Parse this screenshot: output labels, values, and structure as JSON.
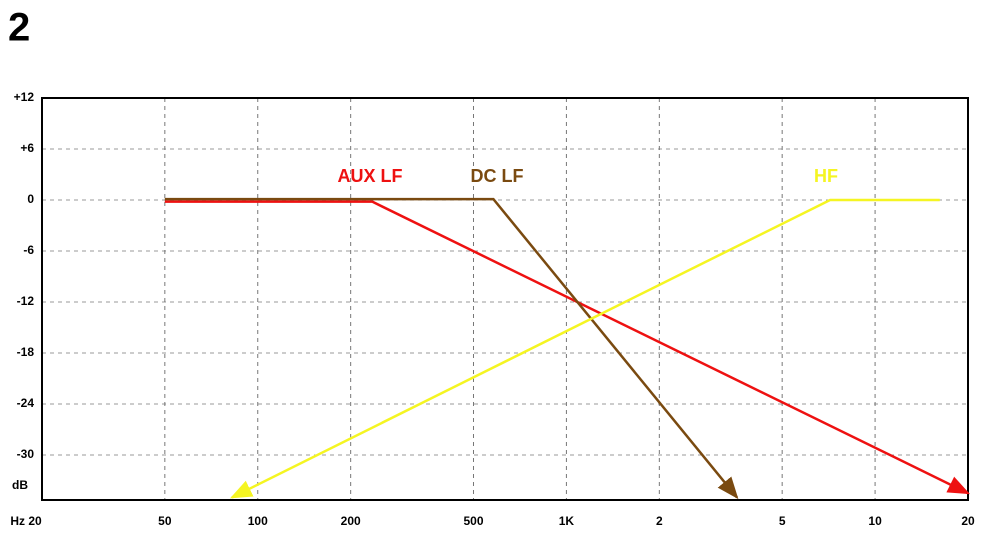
{
  "chart_data": {
    "type": "line",
    "title": "2",
    "y_label": "dB",
    "xscale": "log",
    "grid": true,
    "xlim": [
      20,
      20000
    ],
    "ylim": [
      -35.3,
      12
    ],
    "xticks": [
      {
        "value": 20,
        "label": "Hz 20"
      },
      50,
      100,
      200,
      500,
      {
        "value": 1000,
        "label": "1K"
      },
      {
        "value": 2000,
        "label": "2"
      },
      {
        "value": 5000,
        "label": "5"
      },
      {
        "value": 10000,
        "label": "10"
      },
      {
        "value": 20000,
        "label": "20"
      }
    ],
    "yticks": [
      {
        "value": 12,
        "label": "+12"
      },
      {
        "value": 6,
        "label": "+6"
      },
      0,
      -6,
      -12,
      -18,
      -24,
      -30
    ],
    "series": [
      {
        "name": "AUX LF",
        "color": "#ee1111",
        "x": [
          50,
          235,
          20000
        ],
        "values": [
          -0.2,
          -0.2,
          -34.5
        ]
      },
      {
        "name": "DC LF",
        "color": "#7a4a10",
        "x": [
          50,
          580,
          3570
        ],
        "values": [
          0.1,
          0.1,
          -35
        ]
      },
      {
        "name": "HF",
        "color": "#f5f522",
        "x": [
          82.5,
          7150,
          16200
        ],
        "values": [
          -35,
          0,
          0
        ]
      }
    ]
  }
}
